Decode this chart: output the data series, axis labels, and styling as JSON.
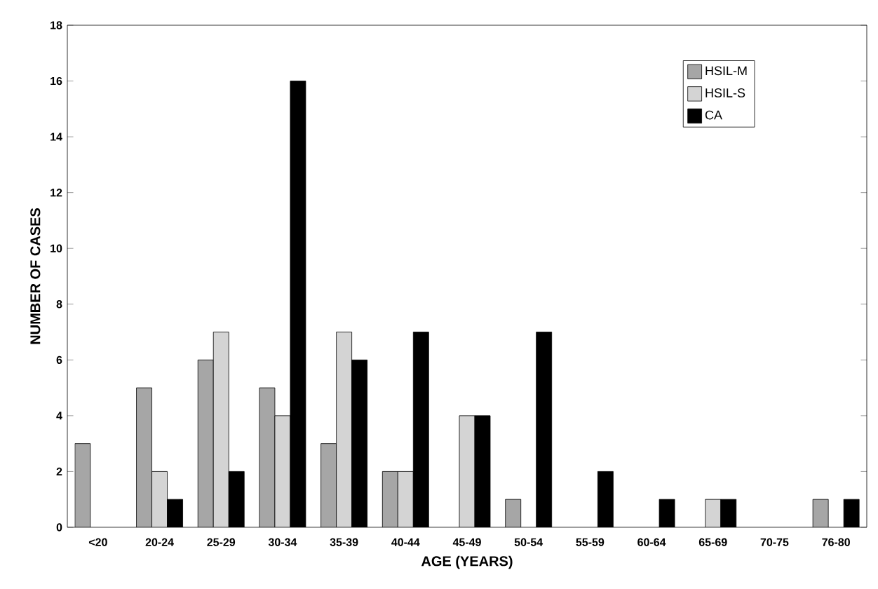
{
  "chart_data": {
    "type": "bar",
    "xlabel": "AGE (YEARS)",
    "ylabel": "NUMBER OF CASES",
    "categories": [
      "<20",
      "20-24",
      "25-29",
      "30-34",
      "35-39",
      "40-44",
      "45-49",
      "50-54",
      "55-59",
      "60-64",
      "65-69",
      "70-75",
      "76-80"
    ],
    "series": [
      {
        "name": "HSIL-M",
        "color": "#a6a6a6",
        "values": [
          3,
          5,
          6,
          5,
          3,
          2,
          0,
          1,
          0,
          0,
          0,
          0,
          1
        ]
      },
      {
        "name": "HSIL-S",
        "color": "#d4d4d4",
        "values": [
          0,
          2,
          7,
          4,
          7,
          2,
          4,
          0,
          0,
          0,
          1,
          0,
          0
        ]
      },
      {
        "name": "CA",
        "color": "#000000",
        "values": [
          0,
          1,
          2,
          16,
          6,
          7,
          4,
          7,
          2,
          1,
          1,
          0,
          1
        ]
      }
    ],
    "ylim": [
      0,
      18
    ],
    "yticks": [
      0,
      2,
      4,
      6,
      8,
      10,
      12,
      14,
      16,
      18
    ],
    "grid": false,
    "legend": "top right"
  }
}
